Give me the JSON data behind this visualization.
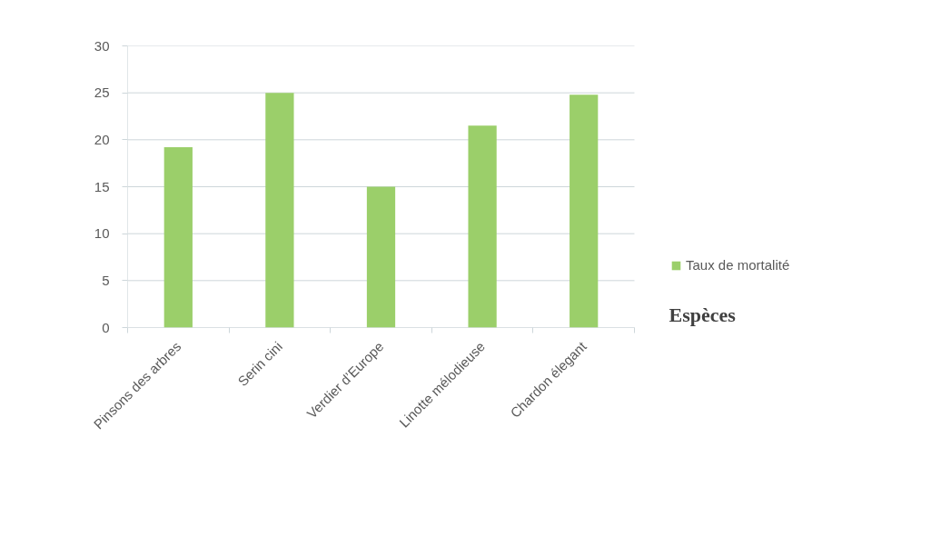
{
  "chart_data": {
    "type": "bar",
    "categories": [
      "Pinsons des arbres",
      "Serin cini",
      "Verdier d’Europe",
      "Linotte mélodieuse",
      "Chardon élegant"
    ],
    "series": [
      {
        "name": "Taux de mortalité",
        "color": "#9bcf6a",
        "values": [
          19.2,
          25,
          15,
          21.5,
          24.8
        ]
      }
    ],
    "xlabel": "Espèces",
    "ylim": [
      0,
      30
    ],
    "yticks": [
      0,
      5,
      10,
      15,
      20,
      25,
      30
    ],
    "grid": "y",
    "legend": "right"
  }
}
